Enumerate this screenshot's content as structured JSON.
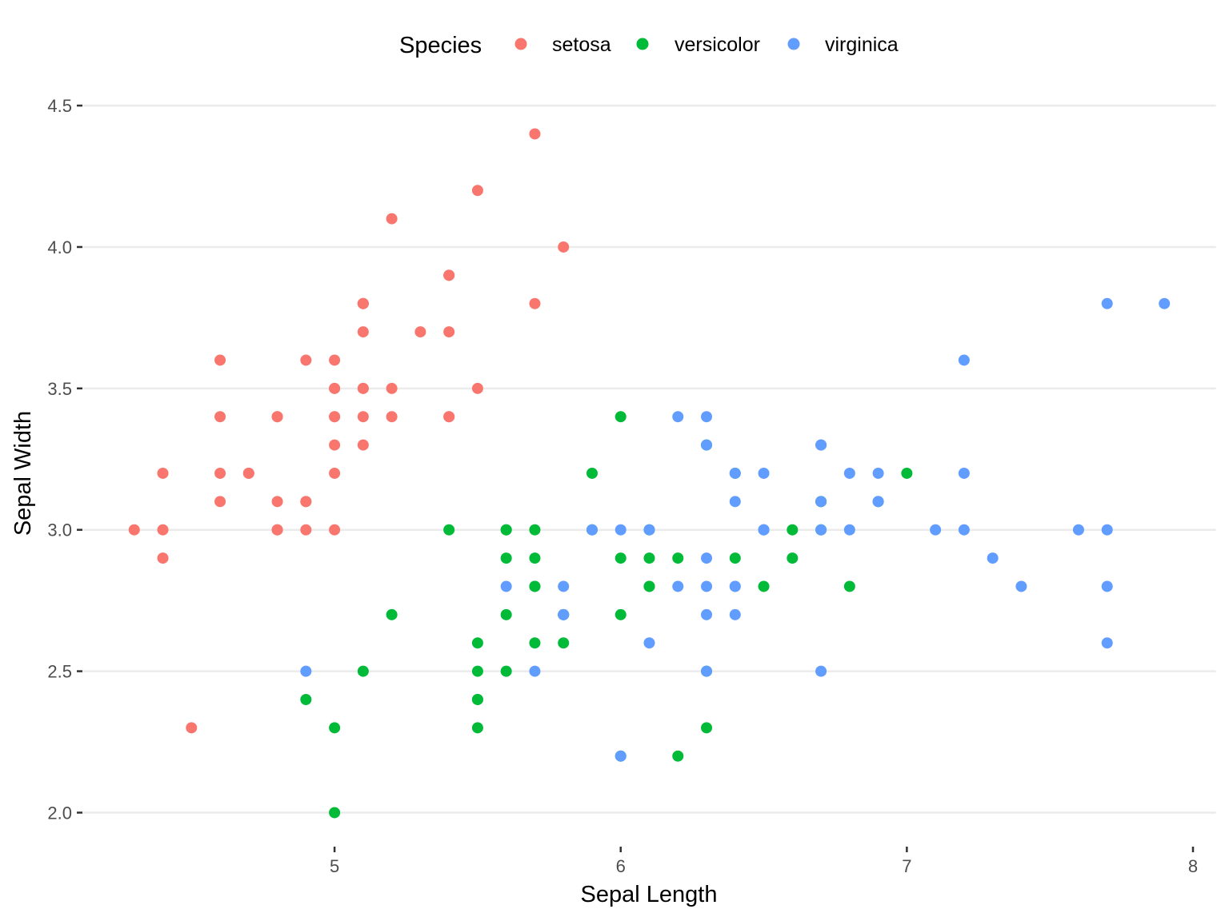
{
  "chart_data": {
    "type": "scatter",
    "title": "",
    "xlabel": "Sepal Length",
    "ylabel": "Sepal Width",
    "xlim": [
      4.12,
      8.08
    ],
    "ylim": [
      1.88,
      4.52
    ],
    "x_ticks": [
      5,
      6,
      7,
      8
    ],
    "x_tick_labels": [
      "5",
      "6",
      "7",
      "8"
    ],
    "y_ticks": [
      2.0,
      2.5,
      3.0,
      3.5,
      4.0,
      4.5
    ],
    "y_tick_labels": [
      "2.0",
      "2.5",
      "3.0",
      "3.5",
      "4.0",
      "4.5"
    ],
    "grid": "horizontal major",
    "legend": {
      "title": "Species",
      "position": "top"
    },
    "series": [
      {
        "name": "setosa",
        "color": "#F8766D",
        "points": [
          [
            5.1,
            3.5
          ],
          [
            4.9,
            3.0
          ],
          [
            4.7,
            3.2
          ],
          [
            4.6,
            3.1
          ],
          [
            5.0,
            3.6
          ],
          [
            5.4,
            3.9
          ],
          [
            4.6,
            3.4
          ],
          [
            5.0,
            3.4
          ],
          [
            4.4,
            2.9
          ],
          [
            4.9,
            3.1
          ],
          [
            5.4,
            3.7
          ],
          [
            4.8,
            3.4
          ],
          [
            4.8,
            3.0
          ],
          [
            4.3,
            3.0
          ],
          [
            5.8,
            4.0
          ],
          [
            5.7,
            4.4
          ],
          [
            5.4,
            3.9
          ],
          [
            5.1,
            3.5
          ],
          [
            5.7,
            3.8
          ],
          [
            5.1,
            3.8
          ],
          [
            5.4,
            3.4
          ],
          [
            5.1,
            3.7
          ],
          [
            4.6,
            3.6
          ],
          [
            5.1,
            3.3
          ],
          [
            4.8,
            3.4
          ],
          [
            5.0,
            3.0
          ],
          [
            5.0,
            3.4
          ],
          [
            5.2,
            3.5
          ],
          [
            5.2,
            3.4
          ],
          [
            4.7,
            3.2
          ],
          [
            4.8,
            3.1
          ],
          [
            5.4,
            3.4
          ],
          [
            5.2,
            4.1
          ],
          [
            5.5,
            4.2
          ],
          [
            4.9,
            3.1
          ],
          [
            5.0,
            3.2
          ],
          [
            5.5,
            3.5
          ],
          [
            4.9,
            3.6
          ],
          [
            4.4,
            3.0
          ],
          [
            5.1,
            3.4
          ],
          [
            5.0,
            3.5
          ],
          [
            4.5,
            2.3
          ],
          [
            4.4,
            3.2
          ],
          [
            5.0,
            3.5
          ],
          [
            5.1,
            3.8
          ],
          [
            4.8,
            3.0
          ],
          [
            5.1,
            3.8
          ],
          [
            4.6,
            3.2
          ],
          [
            5.3,
            3.7
          ],
          [
            5.0,
            3.3
          ]
        ]
      },
      {
        "name": "versicolor",
        "color": "#00BA38",
        "points": [
          [
            7.0,
            3.2
          ],
          [
            6.4,
            3.2
          ],
          [
            6.9,
            3.1
          ],
          [
            5.5,
            2.3
          ],
          [
            6.5,
            2.8
          ],
          [
            5.7,
            2.8
          ],
          [
            6.3,
            3.3
          ],
          [
            4.9,
            2.4
          ],
          [
            6.6,
            2.9
          ],
          [
            5.2,
            2.7
          ],
          [
            5.0,
            2.0
          ],
          [
            5.9,
            3.0
          ],
          [
            6.0,
            2.2
          ],
          [
            6.1,
            2.9
          ],
          [
            5.6,
            2.9
          ],
          [
            6.7,
            3.1
          ],
          [
            5.6,
            3.0
          ],
          [
            5.8,
            2.7
          ],
          [
            6.2,
            2.2
          ],
          [
            5.6,
            2.5
          ],
          [
            5.9,
            3.2
          ],
          [
            6.1,
            2.8
          ],
          [
            6.3,
            2.5
          ],
          [
            6.1,
            2.8
          ],
          [
            6.4,
            2.9
          ],
          [
            6.6,
            3.0
          ],
          [
            6.8,
            2.8
          ],
          [
            6.7,
            3.0
          ],
          [
            6.0,
            2.9
          ],
          [
            5.7,
            2.6
          ],
          [
            5.5,
            2.4
          ],
          [
            5.5,
            2.4
          ],
          [
            5.8,
            2.7
          ],
          [
            6.0,
            2.7
          ],
          [
            5.4,
            3.0
          ],
          [
            6.0,
            3.4
          ],
          [
            6.7,
            3.1
          ],
          [
            6.3,
            2.3
          ],
          [
            5.6,
            3.0
          ],
          [
            5.5,
            2.5
          ],
          [
            5.5,
            2.6
          ],
          [
            6.1,
            3.0
          ],
          [
            5.8,
            2.6
          ],
          [
            5.0,
            2.3
          ],
          [
            5.6,
            2.7
          ],
          [
            5.7,
            3.0
          ],
          [
            5.7,
            2.9
          ],
          [
            6.2,
            2.9
          ],
          [
            5.1,
            2.5
          ],
          [
            5.7,
            2.8
          ]
        ]
      },
      {
        "name": "virginica",
        "color": "#619CFF",
        "points": [
          [
            6.3,
            3.3
          ],
          [
            5.8,
            2.7
          ],
          [
            7.1,
            3.0
          ],
          [
            6.3,
            2.9
          ],
          [
            6.5,
            3.0
          ],
          [
            7.6,
            3.0
          ],
          [
            4.9,
            2.5
          ],
          [
            7.3,
            2.9
          ],
          [
            6.7,
            2.5
          ],
          [
            7.2,
            3.6
          ],
          [
            6.5,
            3.2
          ],
          [
            6.4,
            2.7
          ],
          [
            6.8,
            3.0
          ],
          [
            5.7,
            2.5
          ],
          [
            5.8,
            2.8
          ],
          [
            6.4,
            3.2
          ],
          [
            6.5,
            3.0
          ],
          [
            7.7,
            3.8
          ],
          [
            7.7,
            2.6
          ],
          [
            6.0,
            2.2
          ],
          [
            6.9,
            3.2
          ],
          [
            5.6,
            2.8
          ],
          [
            7.7,
            2.8
          ],
          [
            6.3,
            2.7
          ],
          [
            6.7,
            3.3
          ],
          [
            7.2,
            3.2
          ],
          [
            6.2,
            2.8
          ],
          [
            6.1,
            3.0
          ],
          [
            6.4,
            2.8
          ],
          [
            7.2,
            3.0
          ],
          [
            7.4,
            2.8
          ],
          [
            7.9,
            3.8
          ],
          [
            6.4,
            2.8
          ],
          [
            6.3,
            2.8
          ],
          [
            6.1,
            2.6
          ],
          [
            7.7,
            3.0
          ],
          [
            6.3,
            3.4
          ],
          [
            6.4,
            3.1
          ],
          [
            6.0,
            3.0
          ],
          [
            6.9,
            3.1
          ],
          [
            6.7,
            3.1
          ],
          [
            6.9,
            3.1
          ],
          [
            5.8,
            2.7
          ],
          [
            6.8,
            3.2
          ],
          [
            6.7,
            3.3
          ],
          [
            6.7,
            3.0
          ],
          [
            6.3,
            2.5
          ],
          [
            6.5,
            3.0
          ],
          [
            6.2,
            3.4
          ],
          [
            5.9,
            3.0
          ]
        ]
      }
    ]
  }
}
